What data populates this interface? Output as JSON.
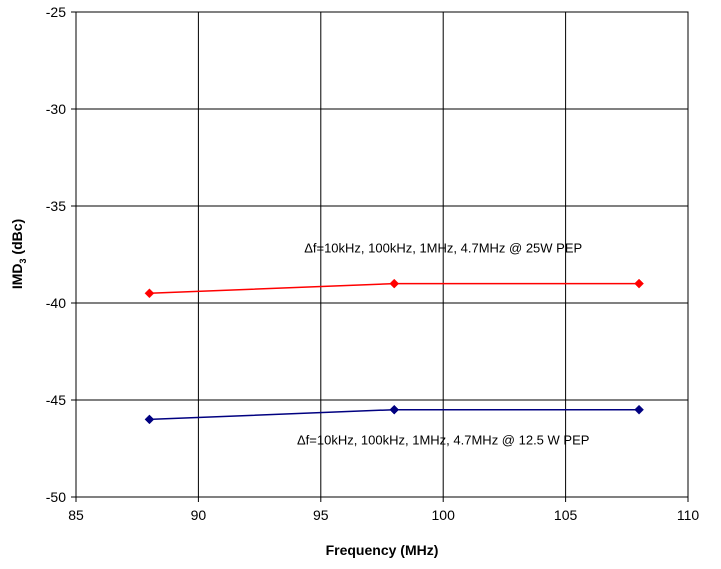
{
  "chart_data": {
    "type": "line",
    "title": "",
    "xlabel": "Frequency (MHz)",
    "ylabel": {
      "main": "IMD",
      "sub": "3",
      "rest": " (dBc)"
    },
    "xlim": [
      85,
      110
    ],
    "ylim": [
      -50,
      -25
    ],
    "xticks": [
      85,
      90,
      95,
      100,
      105,
      110
    ],
    "yticks": [
      -25,
      -30,
      -35,
      -40,
      -45,
      -50
    ],
    "grid": true,
    "series": [
      {
        "color": "#ff0000",
        "x": [
          88,
          98,
          108
        ],
        "y": [
          -39.5,
          -39.0,
          -39.0
        ]
      },
      {
        "color": "#000080",
        "x": [
          88,
          98,
          108
        ],
        "y": [
          -46.0,
          -45.5,
          -45.5
        ]
      }
    ],
    "annotations": [
      {
        "text": "Δf=10kHz,  100kHz,  1MHz,  4.7MHz @ 25W  PEP",
        "x": 100,
        "y": -37.4
      },
      {
        "text": "Δf=10kHz,  100kHz,  1MHz,  4.7MHz @ 12.5  W  PEP",
        "x": 100,
        "y": -47.3
      }
    ]
  }
}
